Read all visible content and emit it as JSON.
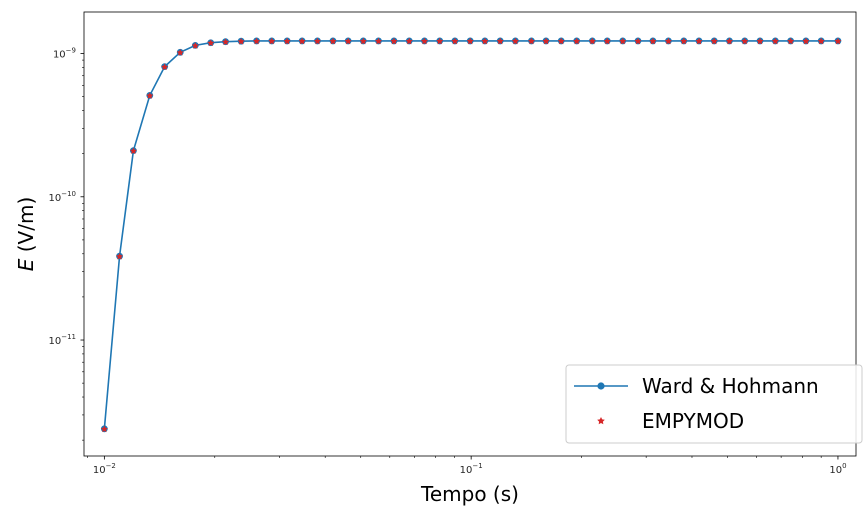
{
  "chart_data": {
    "type": "line",
    "title": "",
    "xlabel": "Tempo (s)",
    "ylabel_italic": "E",
    "ylabel_rest": " (V/m)",
    "xscale": "log",
    "yscale": "log",
    "xlim": [
      0.0088,
      1.12
    ],
    "ylim": [
      1.55e-12,
      1.95e-09
    ],
    "grid": false,
    "legend_position": "bottom-right",
    "x_ticks": [
      {
        "value": 0.01,
        "base": "10",
        "exp": "−2"
      },
      {
        "value": 0.1,
        "base": "10",
        "exp": "−1"
      },
      {
        "value": 1,
        "base": "10",
        "exp": "0"
      }
    ],
    "y_ticks": [
      {
        "value": 1e-11,
        "base": "10",
        "exp": "−11"
      },
      {
        "value": 1e-10,
        "base": "10",
        "exp": "−10"
      },
      {
        "value": 1e-09,
        "base": "10",
        "exp": "−9"
      }
    ],
    "x": [
      0.01,
      0.011,
      0.012,
      0.0133,
      0.0146,
      0.0161,
      0.0177,
      0.0195,
      0.0214,
      0.0236,
      0.026,
      0.0286,
      0.0315,
      0.0346,
      0.0381,
      0.042,
      0.0462,
      0.0508,
      0.0559,
      0.0616,
      0.0678,
      0.0746,
      0.0821,
      0.0903,
      0.0994,
      0.109,
      0.12,
      0.132,
      0.146,
      0.16,
      0.176,
      0.194,
      0.214,
      0.235,
      0.259,
      0.285,
      0.313,
      0.345,
      0.38,
      0.418,
      0.46,
      0.506,
      0.557,
      0.613,
      0.675,
      0.743,
      0.818,
      0.9,
      1.0
    ],
    "series": [
      {
        "name": "Ward & Hohmann",
        "color": "#1f77b4",
        "marker": "circle",
        "values": [
          2.4e-12,
          3.85e-11,
          2.1e-10,
          5.1e-10,
          8.1e-10,
          1.02e-09,
          1.14e-09,
          1.19e-09,
          1.21e-09,
          1.22e-09,
          1.225e-09,
          1.225e-09,
          1.225e-09,
          1.225e-09,
          1.225e-09,
          1.225e-09,
          1.225e-09,
          1.225e-09,
          1.225e-09,
          1.225e-09,
          1.225e-09,
          1.225e-09,
          1.225e-09,
          1.225e-09,
          1.225e-09,
          1.225e-09,
          1.225e-09,
          1.225e-09,
          1.225e-09,
          1.225e-09,
          1.225e-09,
          1.225e-09,
          1.225e-09,
          1.225e-09,
          1.225e-09,
          1.225e-09,
          1.225e-09,
          1.225e-09,
          1.225e-09,
          1.225e-09,
          1.225e-09,
          1.225e-09,
          1.225e-09,
          1.225e-09,
          1.225e-09,
          1.225e-09,
          1.225e-09,
          1.225e-09,
          1.225e-09
        ]
      },
      {
        "name": "EMPYMOD",
        "color": "#d62728",
        "marker": "star",
        "values": [
          2.4e-12,
          3.85e-11,
          2.1e-10,
          5.1e-10,
          8.1e-10,
          1.02e-09,
          1.14e-09,
          1.19e-09,
          1.21e-09,
          1.22e-09,
          1.225e-09,
          1.225e-09,
          1.225e-09,
          1.225e-09,
          1.225e-09,
          1.225e-09,
          1.225e-09,
          1.225e-09,
          1.225e-09,
          1.225e-09,
          1.225e-09,
          1.225e-09,
          1.225e-09,
          1.225e-09,
          1.225e-09,
          1.225e-09,
          1.225e-09,
          1.225e-09,
          1.225e-09,
          1.225e-09,
          1.225e-09,
          1.225e-09,
          1.225e-09,
          1.225e-09,
          1.225e-09,
          1.225e-09,
          1.225e-09,
          1.225e-09,
          1.225e-09,
          1.225e-09,
          1.225e-09,
          1.225e-09,
          1.225e-09,
          1.225e-09,
          1.225e-09,
          1.225e-09,
          1.225e-09,
          1.225e-09,
          1.225e-09
        ]
      }
    ]
  }
}
